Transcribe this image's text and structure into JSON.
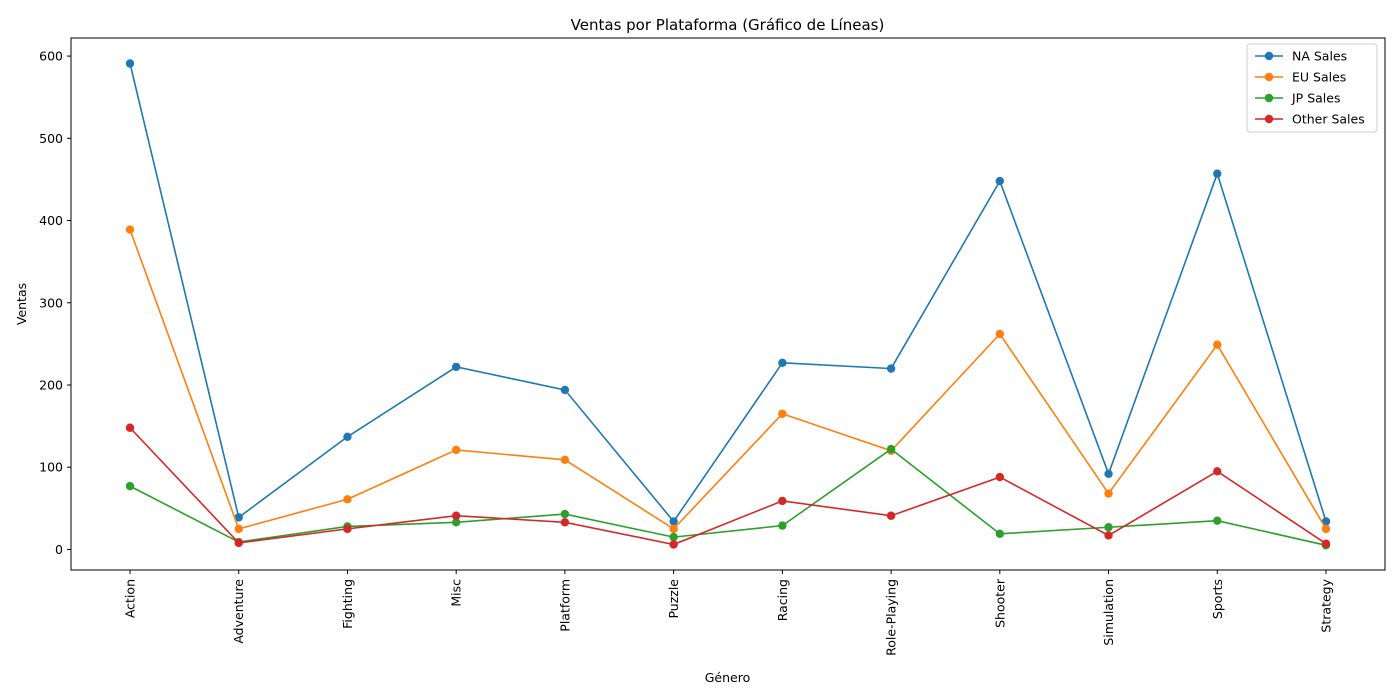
{
  "chart_data": {
    "type": "line",
    "title": "Ventas por Plataforma (Gráfico de Líneas)",
    "xlabel": "Género",
    "ylabel": "Ventas",
    "categories": [
      "Action",
      "Adventure",
      "Fighting",
      "Misc",
      "Platform",
      "Puzzle",
      "Racing",
      "Role-Playing",
      "Shooter",
      "Simulation",
      "Sports",
      "Strategy"
    ],
    "ylim": [
      -25,
      622
    ],
    "yticks": [
      0,
      100,
      200,
      300,
      400,
      500,
      600
    ],
    "grid": false,
    "legend_position": "top-right",
    "series": [
      {
        "name": "NA Sales",
        "color": "#1f77b4",
        "values": [
          591,
          39,
          137,
          222,
          194,
          34,
          227,
          220,
          448,
          92,
          457,
          34
        ]
      },
      {
        "name": "EU Sales",
        "color": "#ff7f0e",
        "values": [
          389,
          25,
          61,
          121,
          109,
          25,
          165,
          120,
          262,
          68,
          249,
          25
        ]
      },
      {
        "name": "JP Sales",
        "color": "#2ca02c",
        "values": [
          77,
          9,
          28,
          33,
          43,
          15,
          29,
          122,
          19,
          27,
          35,
          5
        ]
      },
      {
        "name": "Other Sales",
        "color": "#d62728",
        "values": [
          148,
          8,
          25,
          41,
          33,
          6,
          59,
          41,
          88,
          17,
          95,
          7
        ]
      }
    ]
  }
}
